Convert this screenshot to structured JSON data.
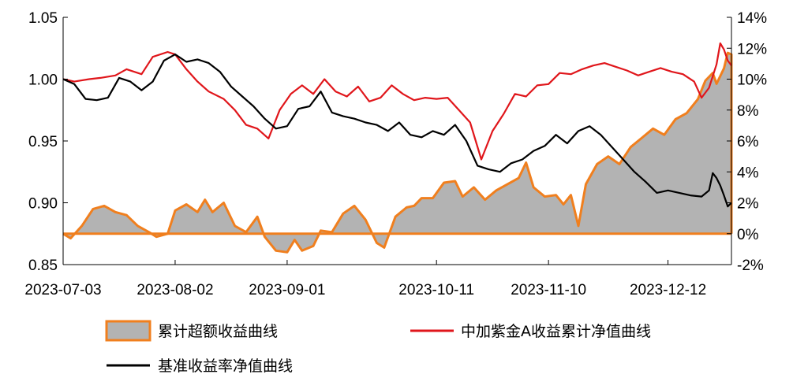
{
  "chart_data": {
    "type": "line",
    "x_tick_labels": [
      "2023-07-03",
      "2023-08-02",
      "2023-09-01",
      "2023-10-11",
      "2023-11-10",
      "2023-12-12"
    ],
    "x_start": "2023-07-03",
    "x_end": "2023-12-29",
    "y_left": {
      "range": [
        0.85,
        1.05
      ],
      "ticks": [
        0.85,
        0.9,
        0.95,
        1.0,
        1.05
      ],
      "tick_labels": [
        "0.85",
        "0.90",
        "0.95",
        "1.00",
        "1.05"
      ]
    },
    "y_right": {
      "range": [
        -2,
        14
      ],
      "ticks": [
        -2,
        0,
        2,
        4,
        6,
        8,
        10,
        12,
        14
      ],
      "tick_labels": [
        "-2%",
        "0%",
        "2%",
        "4%",
        "6%",
        "8%",
        "10%",
        "12%",
        "14%"
      ]
    },
    "grid": false,
    "legend_position": "bottom",
    "colors": {
      "area_fill": "#b3b3b3",
      "area_edge": "#f07f1e",
      "fund_line": "#e0161b",
      "benchmark_line": "#000000"
    },
    "series": [
      {
        "name": "累计超额收益曲线",
        "kind": "area",
        "axis": "right",
        "points": [
          [
            "2023-07-03",
            0.0
          ],
          [
            "2023-07-05",
            -0.3
          ],
          [
            "2023-07-08",
            0.5
          ],
          [
            "2023-07-11",
            1.6
          ],
          [
            "2023-07-14",
            1.8
          ],
          [
            "2023-07-17",
            1.4
          ],
          [
            "2023-07-20",
            1.2
          ],
          [
            "2023-07-23",
            0.5
          ],
          [
            "2023-07-26",
            0.1
          ],
          [
            "2023-07-28",
            -0.2
          ],
          [
            "2023-07-31",
            0.0
          ],
          [
            "2023-08-02",
            1.5
          ],
          [
            "2023-08-05",
            1.9
          ],
          [
            "2023-08-08",
            1.4
          ],
          [
            "2023-08-10",
            2.2
          ],
          [
            "2023-08-12",
            1.4
          ],
          [
            "2023-08-15",
            2.0
          ],
          [
            "2023-08-18",
            0.5
          ],
          [
            "2023-08-21",
            0.1
          ],
          [
            "2023-08-24",
            1.1
          ],
          [
            "2023-08-26",
            -0.2
          ],
          [
            "2023-08-29",
            -1.1
          ],
          [
            "2023-09-01",
            -1.2
          ],
          [
            "2023-09-03",
            -0.4
          ],
          [
            "2023-09-05",
            -1.1
          ],
          [
            "2023-09-08",
            -0.8
          ],
          [
            "2023-09-10",
            0.2
          ],
          [
            "2023-09-13",
            0.1
          ],
          [
            "2023-09-16",
            1.3
          ],
          [
            "2023-09-19",
            1.8
          ],
          [
            "2023-09-22",
            0.9
          ],
          [
            "2023-09-25",
            -0.6
          ],
          [
            "2023-09-27",
            -0.9
          ],
          [
            "2023-09-30",
            1.1
          ],
          [
            "2023-10-03",
            1.7
          ],
          [
            "2023-10-05",
            1.8
          ],
          [
            "2023-10-07",
            2.3
          ],
          [
            "2023-10-10",
            2.3
          ],
          [
            "2023-10-13",
            3.3
          ],
          [
            "2023-10-16",
            3.4
          ],
          [
            "2023-10-18",
            2.4
          ],
          [
            "2023-10-21",
            3.0
          ],
          [
            "2023-10-24",
            2.2
          ],
          [
            "2023-10-27",
            2.8
          ],
          [
            "2023-10-30",
            3.2
          ],
          [
            "2023-11-02",
            3.6
          ],
          [
            "2023-11-04",
            4.6
          ],
          [
            "2023-11-06",
            3.0
          ],
          [
            "2023-11-09",
            2.4
          ],
          [
            "2023-11-12",
            2.5
          ],
          [
            "2023-11-14",
            1.9
          ],
          [
            "2023-11-16",
            2.5
          ],
          [
            "2023-11-18",
            0.5
          ],
          [
            "2023-11-20",
            3.2
          ],
          [
            "2023-11-23",
            4.5
          ],
          [
            "2023-11-26",
            5.0
          ],
          [
            "2023-11-29",
            4.5
          ],
          [
            "2023-12-02",
            5.6
          ],
          [
            "2023-12-05",
            6.2
          ],
          [
            "2023-12-08",
            6.8
          ],
          [
            "2023-12-11",
            6.4
          ],
          [
            "2023-12-14",
            7.4
          ],
          [
            "2023-12-17",
            7.8
          ],
          [
            "2023-12-20",
            8.7
          ],
          [
            "2023-12-22",
            9.9
          ],
          [
            "2023-12-24",
            10.4
          ],
          [
            "2023-12-25",
            9.7
          ],
          [
            "2023-12-26",
            10.2
          ],
          [
            "2023-12-27",
            10.7
          ],
          [
            "2023-12-28",
            11.7
          ],
          [
            "2023-12-29",
            11.6
          ]
        ]
      },
      {
        "name": "中加紫金A收益累计净值曲线",
        "kind": "line",
        "axis": "left",
        "points": [
          [
            "2023-07-03",
            1.0
          ],
          [
            "2023-07-06",
            0.998
          ],
          [
            "2023-07-10",
            1.0
          ],
          [
            "2023-07-13",
            1.001
          ],
          [
            "2023-07-17",
            1.003
          ],
          [
            "2023-07-20",
            1.008
          ],
          [
            "2023-07-24",
            1.004
          ],
          [
            "2023-07-27",
            1.018
          ],
          [
            "2023-07-31",
            1.022
          ],
          [
            "2023-08-02",
            1.02
          ],
          [
            "2023-08-05",
            1.008
          ],
          [
            "2023-08-08",
            0.998
          ],
          [
            "2023-08-11",
            0.99
          ],
          [
            "2023-08-15",
            0.984
          ],
          [
            "2023-08-18",
            0.975
          ],
          [
            "2023-08-21",
            0.963
          ],
          [
            "2023-08-24",
            0.96
          ],
          [
            "2023-08-27",
            0.952
          ],
          [
            "2023-08-30",
            0.975
          ],
          [
            "2023-09-02",
            0.988
          ],
          [
            "2023-09-05",
            0.995
          ],
          [
            "2023-09-08",
            0.988
          ],
          [
            "2023-09-11",
            1.0
          ],
          [
            "2023-09-14",
            0.99
          ],
          [
            "2023-09-17",
            0.986
          ],
          [
            "2023-09-20",
            0.994
          ],
          [
            "2023-09-23",
            0.982
          ],
          [
            "2023-09-26",
            0.985
          ],
          [
            "2023-09-29",
            0.995
          ],
          [
            "2023-10-02",
            0.988
          ],
          [
            "2023-10-05",
            0.983
          ],
          [
            "2023-10-08",
            0.985
          ],
          [
            "2023-10-11",
            0.984
          ],
          [
            "2023-10-14",
            0.985
          ],
          [
            "2023-10-17",
            0.975
          ],
          [
            "2023-10-20",
            0.965
          ],
          [
            "2023-10-23",
            0.935
          ],
          [
            "2023-10-26",
            0.958
          ],
          [
            "2023-10-29",
            0.972
          ],
          [
            "2023-11-01",
            0.988
          ],
          [
            "2023-11-04",
            0.986
          ],
          [
            "2023-11-07",
            0.995
          ],
          [
            "2023-11-10",
            0.996
          ],
          [
            "2023-11-13",
            1.005
          ],
          [
            "2023-11-16",
            1.004
          ],
          [
            "2023-11-19",
            1.008
          ],
          [
            "2023-11-22",
            1.011
          ],
          [
            "2023-11-25",
            1.013
          ],
          [
            "2023-11-28",
            1.01
          ],
          [
            "2023-12-01",
            1.007
          ],
          [
            "2023-12-04",
            1.003
          ],
          [
            "2023-12-07",
            1.006
          ],
          [
            "2023-12-10",
            1.009
          ],
          [
            "2023-12-13",
            1.006
          ],
          [
            "2023-12-16",
            1.004
          ],
          [
            "2023-12-19",
            0.998
          ],
          [
            "2023-12-21",
            0.985
          ],
          [
            "2023-12-23",
            0.993
          ],
          [
            "2023-12-25",
            1.012
          ],
          [
            "2023-12-26",
            1.029
          ],
          [
            "2023-12-27",
            1.024
          ],
          [
            "2023-12-28",
            1.015
          ],
          [
            "2023-12-29",
            1.011
          ]
        ]
      },
      {
        "name": "基准收益率净值曲线",
        "kind": "line",
        "axis": "left",
        "points": [
          [
            "2023-07-03",
            1.0
          ],
          [
            "2023-07-06",
            0.996
          ],
          [
            "2023-07-09",
            0.984
          ],
          [
            "2023-07-12",
            0.983
          ],
          [
            "2023-07-15",
            0.985
          ],
          [
            "2023-07-18",
            1.001
          ],
          [
            "2023-07-21",
            0.998
          ],
          [
            "2023-07-24",
            0.991
          ],
          [
            "2023-07-27",
            0.998
          ],
          [
            "2023-07-30",
            1.015
          ],
          [
            "2023-08-02",
            1.02
          ],
          [
            "2023-08-05",
            1.014
          ],
          [
            "2023-08-08",
            1.016
          ],
          [
            "2023-08-11",
            1.013
          ],
          [
            "2023-08-14",
            1.006
          ],
          [
            "2023-08-17",
            0.994
          ],
          [
            "2023-08-20",
            0.986
          ],
          [
            "2023-08-23",
            0.978
          ],
          [
            "2023-08-26",
            0.968
          ],
          [
            "2023-08-29",
            0.96
          ],
          [
            "2023-09-01",
            0.962
          ],
          [
            "2023-09-04",
            0.976
          ],
          [
            "2023-09-07",
            0.978
          ],
          [
            "2023-09-10",
            0.99
          ],
          [
            "2023-09-13",
            0.973
          ],
          [
            "2023-09-16",
            0.97
          ],
          [
            "2023-09-19",
            0.968
          ],
          [
            "2023-09-22",
            0.965
          ],
          [
            "2023-09-25",
            0.963
          ],
          [
            "2023-09-28",
            0.958
          ],
          [
            "2023-10-01",
            0.965
          ],
          [
            "2023-10-04",
            0.955
          ],
          [
            "2023-10-07",
            0.953
          ],
          [
            "2023-10-10",
            0.958
          ],
          [
            "2023-10-13",
            0.955
          ],
          [
            "2023-10-16",
            0.963
          ],
          [
            "2023-10-19",
            0.95
          ],
          [
            "2023-10-22",
            0.93
          ],
          [
            "2023-10-25",
            0.927
          ],
          [
            "2023-10-28",
            0.925
          ],
          [
            "2023-10-31",
            0.932
          ],
          [
            "2023-11-03",
            0.935
          ],
          [
            "2023-11-06",
            0.942
          ],
          [
            "2023-11-09",
            0.946
          ],
          [
            "2023-11-12",
            0.955
          ],
          [
            "2023-11-15",
            0.948
          ],
          [
            "2023-11-18",
            0.958
          ],
          [
            "2023-11-21",
            0.962
          ],
          [
            "2023-11-24",
            0.955
          ],
          [
            "2023-11-27",
            0.945
          ],
          [
            "2023-11-30",
            0.935
          ],
          [
            "2023-12-03",
            0.925
          ],
          [
            "2023-12-06",
            0.917
          ],
          [
            "2023-12-09",
            0.908
          ],
          [
            "2023-12-12",
            0.91
          ],
          [
            "2023-12-15",
            0.908
          ],
          [
            "2023-12-18",
            0.906
          ],
          [
            "2023-12-21",
            0.905
          ],
          [
            "2023-12-23",
            0.91
          ],
          [
            "2023-12-24",
            0.924
          ],
          [
            "2023-12-25",
            0.92
          ],
          [
            "2023-12-26",
            0.914
          ],
          [
            "2023-12-27",
            0.906
          ],
          [
            "2023-12-28",
            0.897
          ],
          [
            "2023-12-29",
            0.9
          ]
        ]
      }
    ]
  }
}
